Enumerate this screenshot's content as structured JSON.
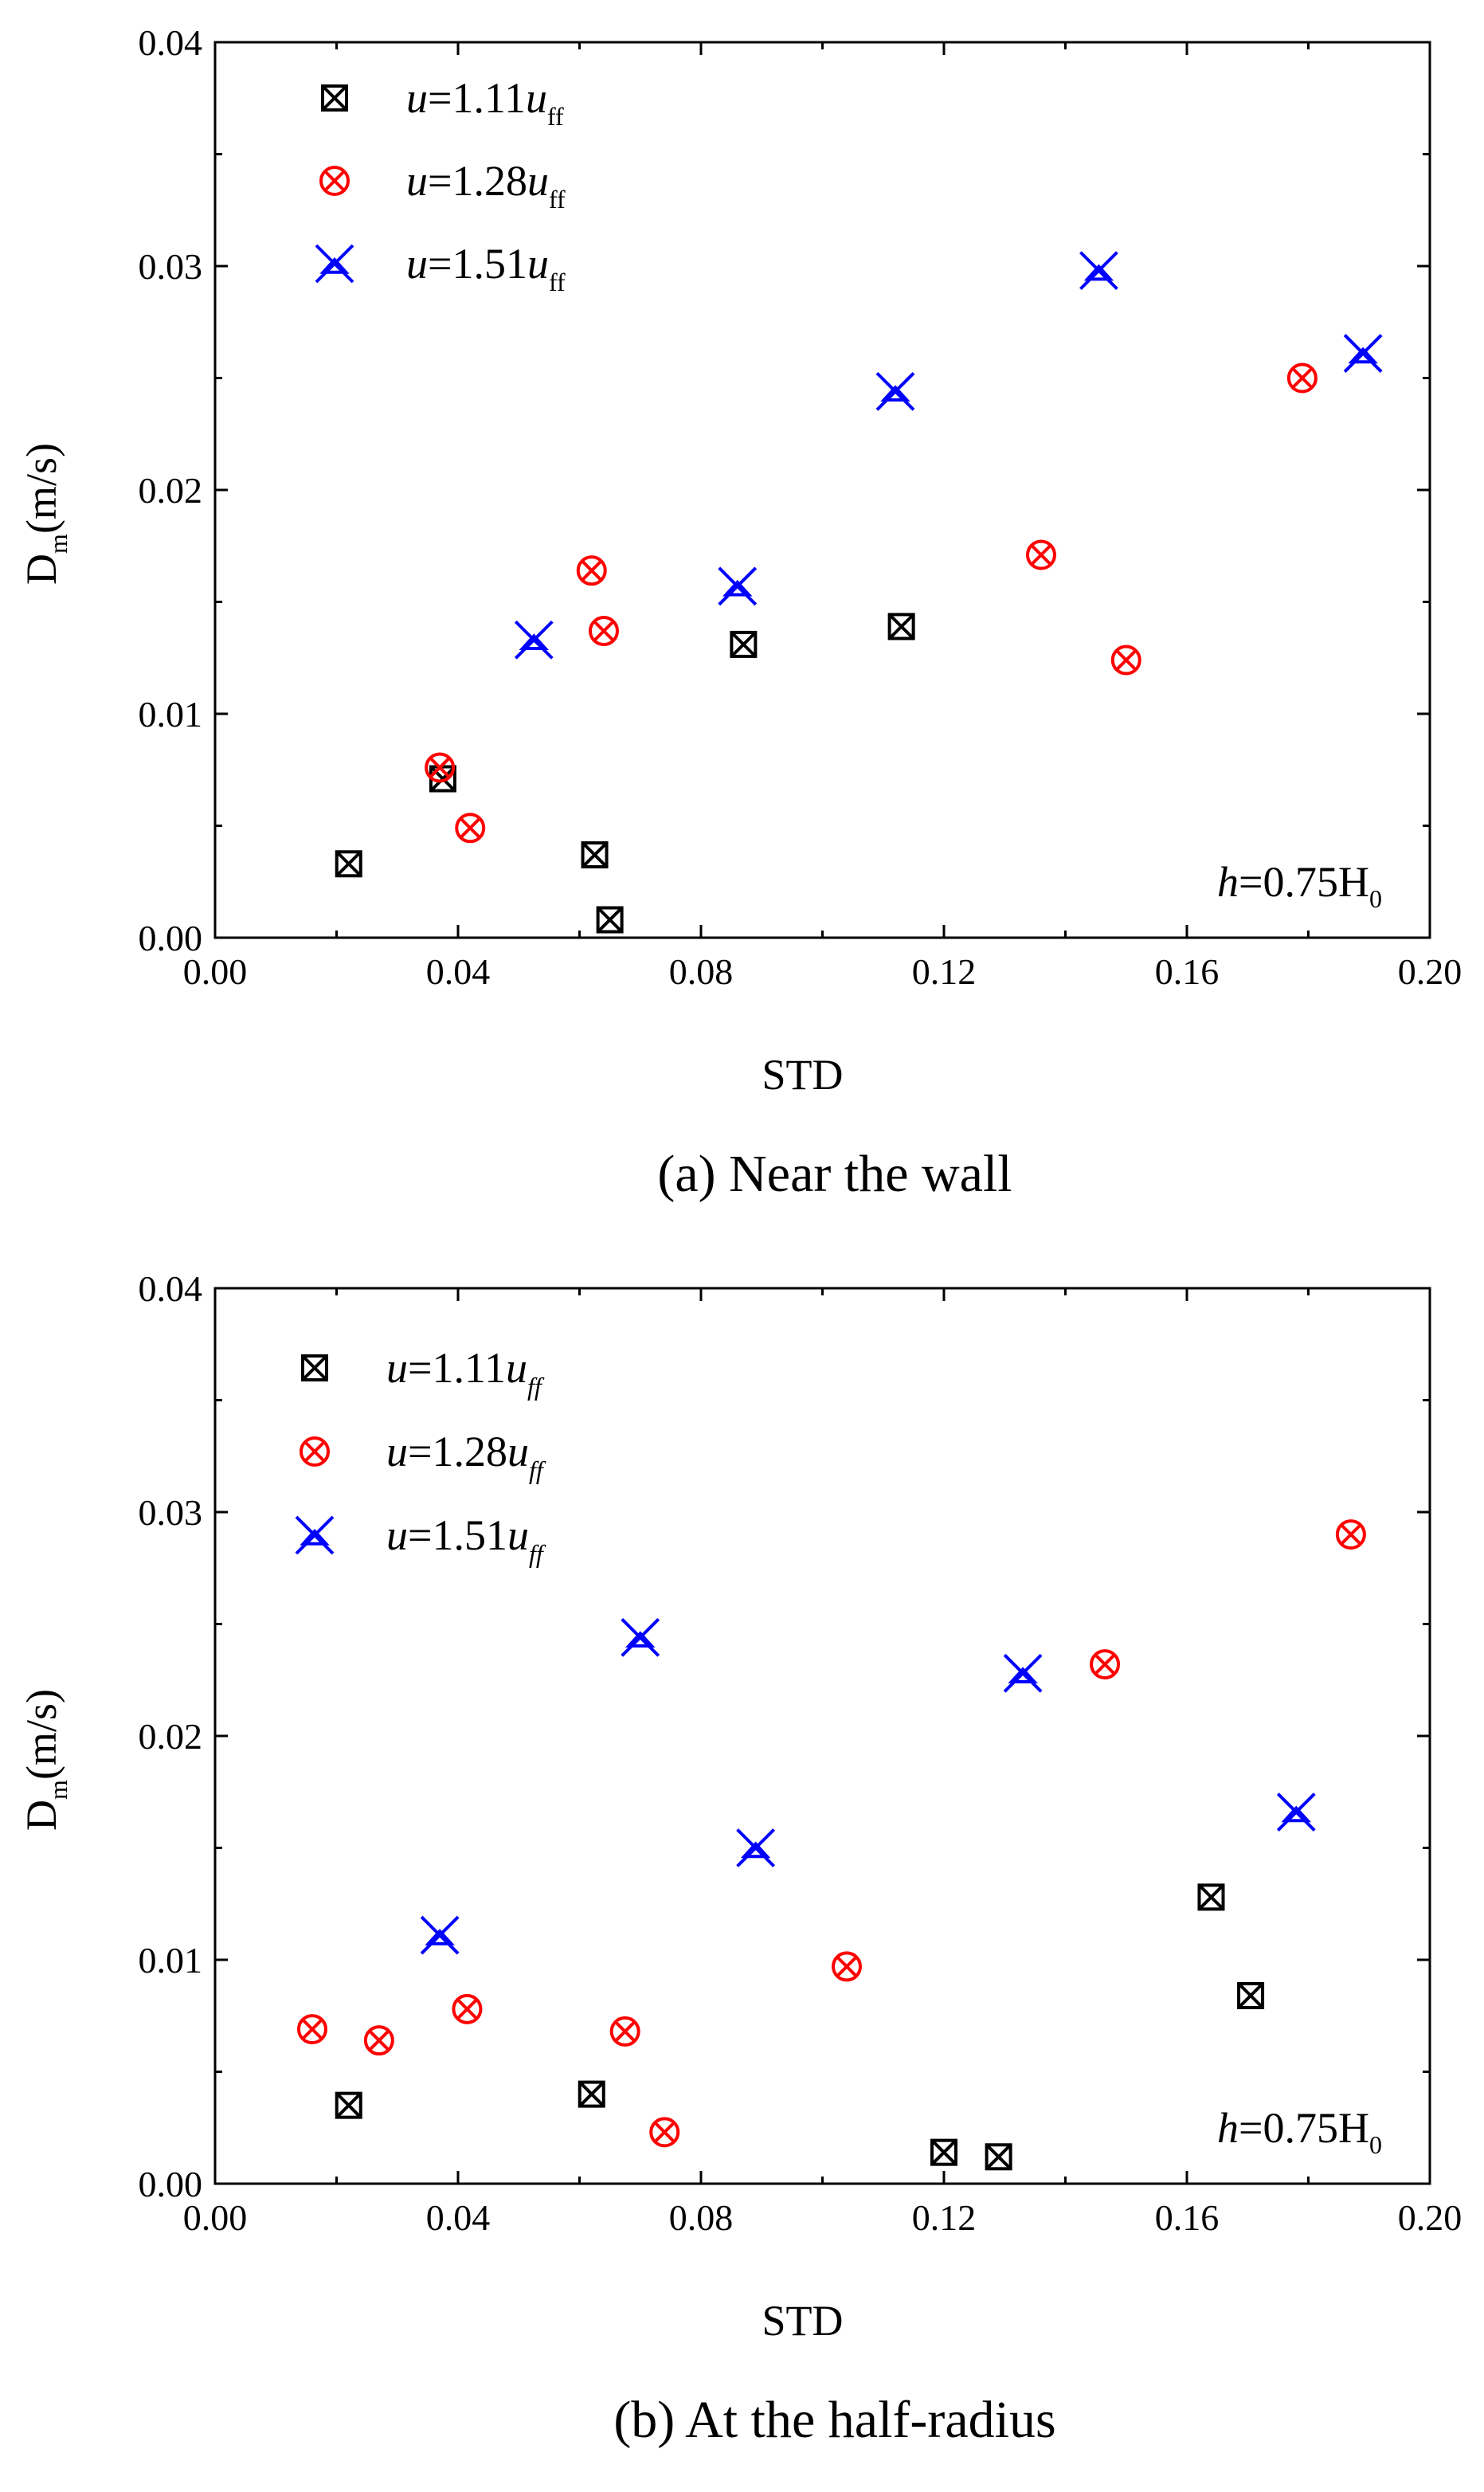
{
  "figure": {
    "panels": [
      {
        "id": "a",
        "caption": "(a) Near the wall",
        "ylabel_main": "D",
        "ylabel_sub": "m",
        "ylabel_rest": "(m/s)",
        "xlabel": "STD",
        "annotation": {
          "italic": "h",
          "text": "=0.75H",
          "sub": "0"
        },
        "legend_sub_italic": false
      },
      {
        "id": "b",
        "caption": "(b) At the half-radius",
        "ylabel_main": "D",
        "ylabel_sub": "m",
        "ylabel_rest": "(m/s)",
        "xlabel": "STD",
        "annotation": {
          "italic": "h",
          "text": "=0.75H",
          "sub": "0"
        },
        "legend_sub_italic": true
      }
    ]
  },
  "chart_data": [
    {
      "type": "scatter",
      "title": "(a) Near the wall",
      "xlabel": "STD",
      "ylabel": "Dm(m/s)",
      "xlim": [
        0.0,
        0.2
      ],
      "ylim": [
        0.0,
        0.04
      ],
      "xticks": [
        "0.00",
        "0.04",
        "0.08",
        "0.12",
        "0.16",
        "0.20"
      ],
      "yticks": [
        "0.00",
        "0.01",
        "0.02",
        "0.03",
        "0.04"
      ],
      "legend_position": "top-left",
      "series": [
        {
          "name": "u=1.11uff",
          "legend_u": "u",
          "legend_value": "=1.11",
          "legend_u2": "u",
          "legend_sub": "ff",
          "marker": "boxed-x",
          "color": "#000000",
          "points": [
            [
              0.022,
              0.0033
            ],
            [
              0.0375,
              0.0071
            ],
            [
              0.0625,
              0.0037
            ],
            [
              0.065,
              0.0008
            ],
            [
              0.087,
              0.0131
            ],
            [
              0.113,
              0.0139
            ]
          ]
        },
        {
          "name": "u=1.28uff",
          "legend_u": "u",
          "legend_value": "=1.28",
          "legend_u2": "u",
          "legend_sub": "ff",
          "marker": "circled-x",
          "color": "#ff0000",
          "points": [
            [
              0.037,
              0.0076
            ],
            [
              0.042,
              0.0049
            ],
            [
              0.062,
              0.0164
            ],
            [
              0.064,
              0.0137
            ],
            [
              0.136,
              0.0171
            ],
            [
              0.15,
              0.0124
            ],
            [
              0.179,
              0.025
            ]
          ]
        },
        {
          "name": "u=1.51uff",
          "legend_u": "u",
          "legend_value": "=1.51",
          "legend_u2": "u",
          "legend_sub": "ff",
          "marker": "star-x",
          "color": "#0000ff",
          "points": [
            [
              0.0525,
              0.0133
            ],
            [
              0.086,
              0.0157
            ],
            [
              0.112,
              0.0244
            ],
            [
              0.1455,
              0.0298
            ],
            [
              0.189,
              0.0261
            ]
          ]
        }
      ]
    },
    {
      "type": "scatter",
      "title": "(b) At the half-radius",
      "xlabel": "STD",
      "ylabel": "Dm(m/s)",
      "xlim": [
        0.0,
        0.2
      ],
      "ylim": [
        0.0,
        0.04
      ],
      "xticks": [
        "0.00",
        "0.04",
        "0.08",
        "0.12",
        "0.16",
        "0.20"
      ],
      "yticks": [
        "0.00",
        "0.01",
        "0.02",
        "0.03",
        "0.04"
      ],
      "legend_position": "top-left",
      "series": [
        {
          "name": "u=1.11uff",
          "legend_u": "u",
          "legend_value": "=1.11",
          "legend_u2": "u",
          "legend_sub": "ff",
          "marker": "boxed-x",
          "color": "#000000",
          "points": [
            [
              0.022,
              0.0035
            ],
            [
              0.062,
              0.004
            ],
            [
              0.12,
              0.0014
            ],
            [
              0.129,
              0.0012
            ],
            [
              0.164,
              0.0128
            ],
            [
              0.1705,
              0.0084
            ]
          ]
        },
        {
          "name": "u=1.28uff",
          "legend_u": "u",
          "legend_value": "=1.28",
          "legend_u2": "u",
          "legend_sub": "ff",
          "marker": "circled-x",
          "color": "#ff0000",
          "points": [
            [
              0.016,
              0.0069
            ],
            [
              0.027,
              0.0064
            ],
            [
              0.0415,
              0.0078
            ],
            [
              0.0675,
              0.0068
            ],
            [
              0.074,
              0.0023
            ],
            [
              0.104,
              0.0097
            ],
            [
              0.1465,
              0.0232
            ],
            [
              0.187,
              0.029
            ]
          ]
        },
        {
          "name": "u=1.51uff",
          "legend_u": "u",
          "legend_value": "=1.51",
          "legend_u2": "u",
          "legend_sub": "ff",
          "marker": "star-x",
          "color": "#0000ff",
          "points": [
            [
              0.037,
              0.0111
            ],
            [
              0.07,
              0.0244
            ],
            [
              0.089,
              0.015
            ],
            [
              0.133,
              0.0228
            ],
            [
              0.178,
              0.0166
            ]
          ]
        }
      ]
    }
  ]
}
